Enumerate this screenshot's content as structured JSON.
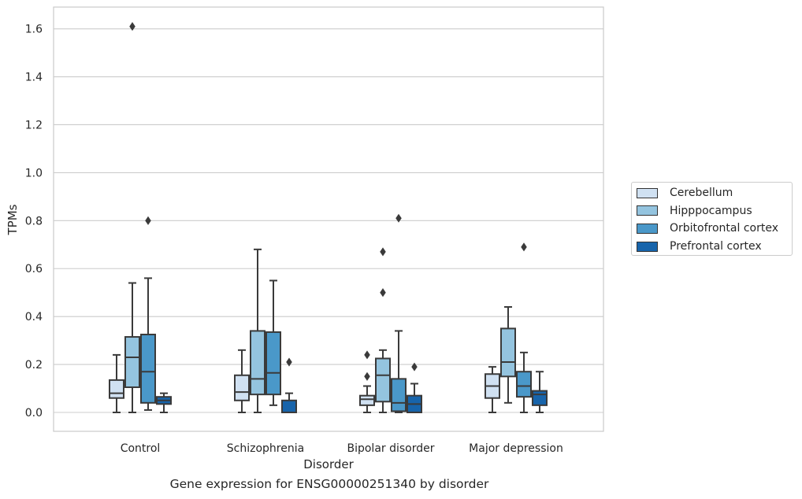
{
  "caption": "Gene expression for ENSG00000251340 by disorder",
  "chart_data": {
    "type": "box",
    "xlabel": "Disorder",
    "ylabel": "TPMs",
    "ylim": [
      -0.08,
      1.69
    ],
    "yticks": [
      "0.0",
      "0.2",
      "0.4",
      "0.6",
      "0.8",
      "1.0",
      "1.2",
      "1.4",
      "1.6"
    ],
    "categories": [
      "Control",
      "Schizophrenia",
      "Bipolar disorder",
      "Major depression"
    ],
    "grid": true,
    "legend_position": "right",
    "series": [
      {
        "name": "Cerebellum",
        "color": "#d0e1f2",
        "boxes": [
          {
            "whislo": 0.0,
            "q1": 0.06,
            "med": 0.08,
            "q3": 0.135,
            "whishi": 0.24,
            "fliers": []
          },
          {
            "whislo": 0.0,
            "q1": 0.05,
            "med": 0.085,
            "q3": 0.155,
            "whishi": 0.26,
            "fliers": []
          },
          {
            "whislo": 0.0,
            "q1": 0.03,
            "med": 0.055,
            "q3": 0.07,
            "whishi": 0.11,
            "fliers": [
              0.15,
              0.24
            ]
          },
          {
            "whislo": 0.0,
            "q1": 0.06,
            "med": 0.11,
            "q3": 0.16,
            "whishi": 0.19,
            "fliers": []
          }
        ]
      },
      {
        "name": "Hipppocampus",
        "color": "#94c4df",
        "boxes": [
          {
            "whislo": 0.0,
            "q1": 0.105,
            "med": 0.23,
            "q3": 0.315,
            "whishi": 0.54,
            "fliers": [
              1.61
            ]
          },
          {
            "whislo": 0.0,
            "q1": 0.075,
            "med": 0.14,
            "q3": 0.34,
            "whishi": 0.68,
            "fliers": []
          },
          {
            "whislo": 0.0,
            "q1": 0.045,
            "med": 0.155,
            "q3": 0.225,
            "whishi": 0.26,
            "fliers": [
              0.5,
              0.67
            ]
          },
          {
            "whislo": 0.04,
            "q1": 0.15,
            "med": 0.21,
            "q3": 0.35,
            "whishi": 0.44,
            "fliers": []
          }
        ]
      },
      {
        "name": "Orbitofrontal cortex",
        "color": "#4a98c9",
        "boxes": [
          {
            "whislo": 0.01,
            "q1": 0.04,
            "med": 0.17,
            "q3": 0.325,
            "whishi": 0.56,
            "fliers": [
              0.8
            ]
          },
          {
            "whislo": 0.03,
            "q1": 0.075,
            "med": 0.165,
            "q3": 0.335,
            "whishi": 0.55,
            "fliers": []
          },
          {
            "whislo": 0.0,
            "q1": 0.005,
            "med": 0.04,
            "q3": 0.14,
            "whishi": 0.34,
            "fliers": [
              0.81
            ]
          },
          {
            "whislo": 0.0,
            "q1": 0.065,
            "med": 0.11,
            "q3": 0.17,
            "whishi": 0.25,
            "fliers": [
              0.69
            ]
          }
        ]
      },
      {
        "name": "Prefrontal cortex",
        "color": "#1764ab",
        "boxes": [
          {
            "whislo": 0.0,
            "q1": 0.035,
            "med": 0.05,
            "q3": 0.065,
            "whishi": 0.08,
            "fliers": []
          },
          {
            "whislo": 0.0,
            "q1": 0.0,
            "med": 0.0,
            "q3": 0.05,
            "whishi": 0.08,
            "fliers": [
              0.21
            ]
          },
          {
            "whislo": 0.0,
            "q1": 0.0,
            "med": 0.035,
            "q3": 0.07,
            "whishi": 0.12,
            "fliers": [
              0.19
            ]
          },
          {
            "whislo": 0.0,
            "q1": 0.03,
            "med": 0.075,
            "q3": 0.09,
            "whishi": 0.17,
            "fliers": []
          }
        ]
      }
    ]
  }
}
